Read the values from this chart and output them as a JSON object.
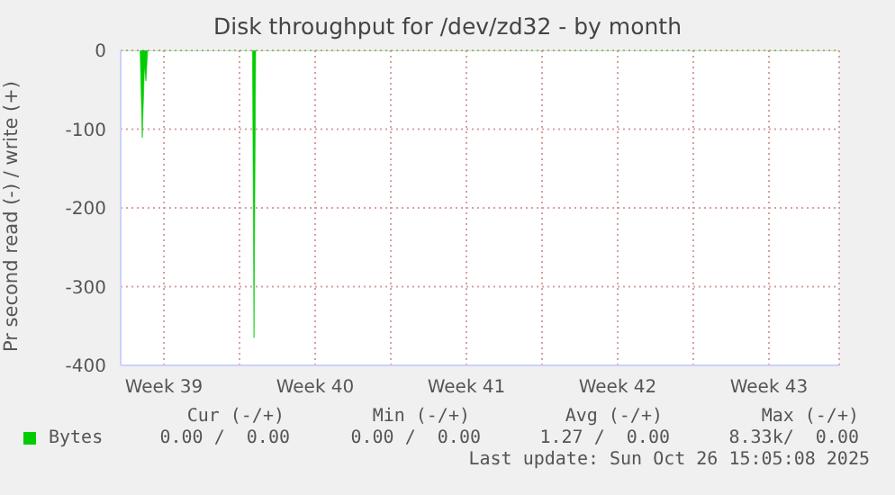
{
  "chart_data": {
    "type": "area",
    "title": "Disk throughput for /dev/zd32 - by month",
    "ylabel": "Pr second read (-) / write (+)",
    "x": [
      "2025-09-23T12:00",
      "2025-09-24T09:36",
      "2025-09-24T12:00",
      "2025-09-24T14:24",
      "2025-09-24T16:05",
      "2025-09-24T18:00",
      "2025-09-29T14:24",
      "2025-09-29T16:05",
      "2025-09-29T18:00",
      "2025-10-26T18:00"
    ],
    "series": [
      {
        "name": "Bytes",
        "color": "#00cc00",
        "values": [
          0,
          0,
          -111,
          -20,
          -39,
          0,
          0,
          -365,
          0,
          0
        ]
      }
    ],
    "xlim": [
      "2025-09-23T12:00",
      "2025-10-26T18:00"
    ],
    "xticks": [
      {
        "value": "2025-09-25T12:00",
        "label": "Week 39"
      },
      {
        "value": "2025-09-29T00:00",
        "label": null
      },
      {
        "value": "2025-10-02T12:00",
        "label": "Week 40"
      },
      {
        "value": "2025-10-06T00:00",
        "label": null
      },
      {
        "value": "2025-10-09T12:00",
        "label": "Week 41"
      },
      {
        "value": "2025-10-13T00:00",
        "label": null
      },
      {
        "value": "2025-10-16T12:00",
        "label": "Week 42"
      },
      {
        "value": "2025-10-20T00:00",
        "label": null
      },
      {
        "value": "2025-10-23T12:00",
        "label": "Week 43"
      }
    ],
    "ylim": [
      -400,
      0
    ],
    "yticks": [
      0,
      -100,
      -200,
      -300,
      -400
    ],
    "grid": true,
    "legend": "bottom",
    "annotations": [
      "Cur (-/+)",
      "Min (-/+)",
      "Avg (-/+)",
      "Max (-/+)",
      "0.00 /  0.00",
      "0.00 /  0.00",
      "1.27 /  0.00",
      "8.33k/  0.00",
      "Last update: Sun Oct 26 15:05:08 2025"
    ]
  }
}
